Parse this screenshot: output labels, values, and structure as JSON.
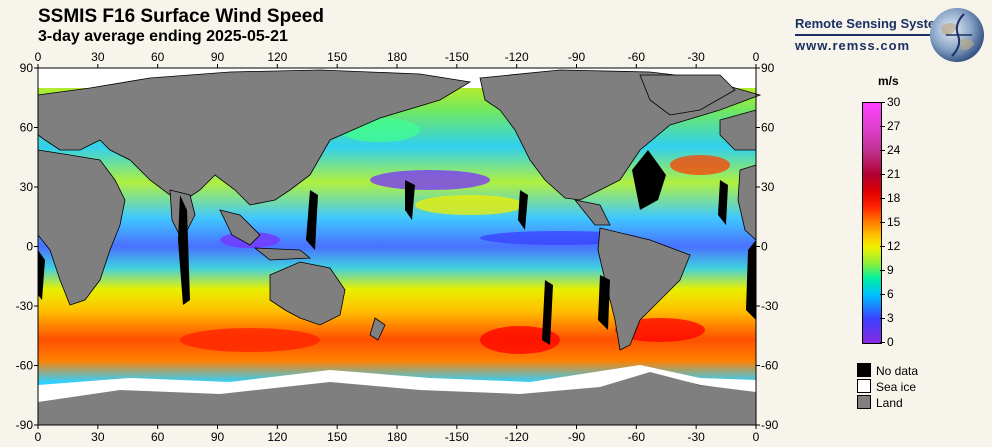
{
  "header": {
    "title": "SSMIS F16 Surface Wind Speed",
    "subtitle": "3-day average ending 2025-05-21"
  },
  "brand": {
    "name": "Remote Sensing Systems",
    "url": "www.remss.com"
  },
  "axes": {
    "lon_labels": [
      "0",
      "30",
      "60",
      "90",
      "120",
      "150",
      "180",
      "-150",
      "-120",
      "-90",
      "-60",
      "-30",
      "0"
    ],
    "lat_labels": [
      "90",
      "60",
      "30",
      "0",
      "-30",
      "-60",
      "-90"
    ]
  },
  "colorbar": {
    "unit": "m/s",
    "range": [
      0,
      30
    ],
    "ticks": [
      "30",
      "27",
      "24",
      "21",
      "18",
      "15",
      "12",
      "9",
      "6",
      "3",
      "0"
    ]
  },
  "legend": [
    {
      "label": "No data",
      "color": "#000000"
    },
    {
      "label": "Sea ice",
      "color": "#ffffff"
    },
    {
      "label": "Land",
      "color": "#7f7f7f"
    }
  ],
  "colors": {
    "land": "#7f7f7f",
    "ice": "#ffffff",
    "nodata": "#000000",
    "brand": "#1c2f63"
  }
}
